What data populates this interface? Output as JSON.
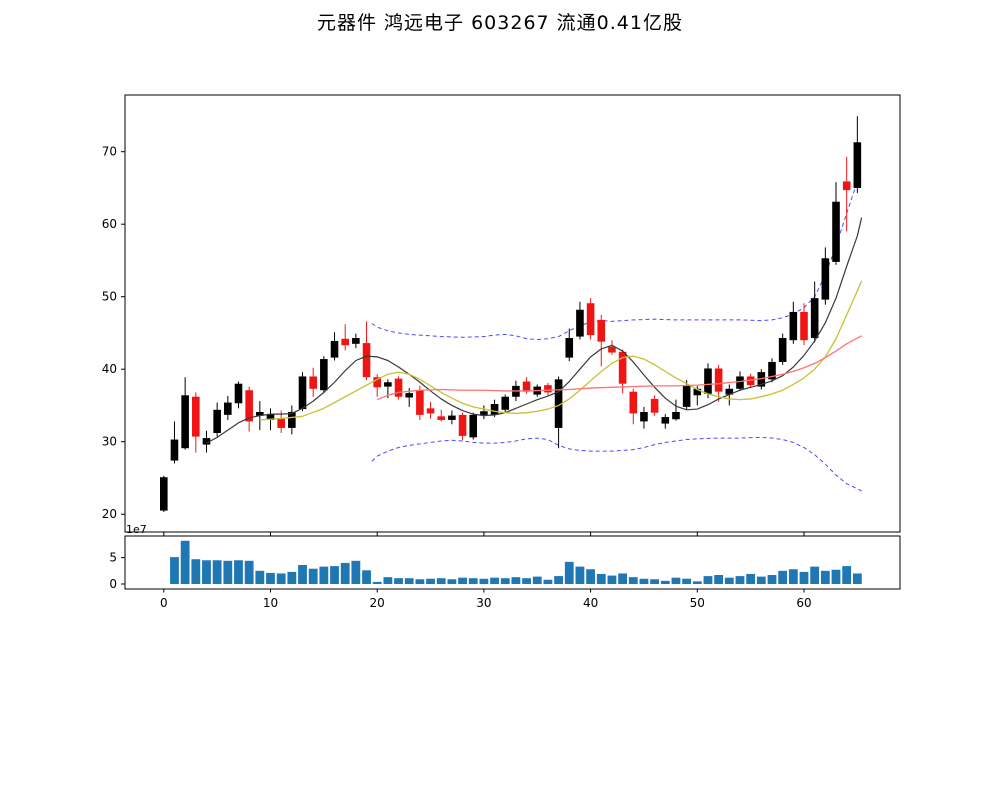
{
  "chart_data": {
    "type": "candlestick",
    "title": "元器件  鸿远电子  603267  流通0.41亿股",
    "panels": {
      "price": {
        "ylabel": "",
        "y_ticks": [
          20,
          30,
          40,
          50,
          60,
          70
        ],
        "ylim": [
          17.5,
          77.8
        ],
        "grid": false
      },
      "volume": {
        "scale_label": "1e7",
        "y_ticks": [
          0,
          5
        ],
        "ylim": [
          -0.9,
          9.1
        ],
        "bar_color": "#1f77b4"
      }
    },
    "x_axis": {
      "ticks": [
        0,
        10,
        20,
        30,
        40,
        50,
        60
      ],
      "xlim": [
        -3.6,
        69.0
      ]
    },
    "legend": null,
    "colors": {
      "up_candle": "#000000",
      "down_candle": "#f01515",
      "ma_fast": "#3a3a3a",
      "ma_mid": "#c9c035",
      "ma_slow": "#ff7373",
      "band": "#4a4aff",
      "volume_bar": "#1f77b4",
      "axis": "#000000"
    },
    "candles_ohlc": [
      [
        20.5,
        25.3,
        20.3,
        25.1
      ],
      [
        27.4,
        32.8,
        27.0,
        30.3
      ],
      [
        29.1,
        38.9,
        28.9,
        36.4
      ],
      [
        36.2,
        36.8,
        28.5,
        30.7
      ],
      [
        29.6,
        31.5,
        28.5,
        30.5
      ],
      [
        31.2,
        35.4,
        30.7,
        34.4
      ],
      [
        33.7,
        36.3,
        33.0,
        35.4
      ],
      [
        35.3,
        38.3,
        34.6,
        38.0
      ],
      [
        37.1,
        37.6,
        31.4,
        32.8
      ],
      [
        33.6,
        35.6,
        31.6,
        34.1
      ],
      [
        33.0,
        34.6,
        31.6,
        33.8
      ],
      [
        33.2,
        34.3,
        31.2,
        31.9
      ],
      [
        31.9,
        35.0,
        31.0,
        34.1
      ],
      [
        34.5,
        39.6,
        34.2,
        39.0
      ],
      [
        39.0,
        40.2,
        36.2,
        37.3
      ],
      [
        37.1,
        41.8,
        36.7,
        41.4
      ],
      [
        41.6,
        45.1,
        41.2,
        43.9
      ],
      [
        44.2,
        46.2,
        42.6,
        43.3
      ],
      [
        43.5,
        44.9,
        42.9,
        44.3
      ],
      [
        43.6,
        46.6,
        38.5,
        38.9
      ],
      [
        38.9,
        39.3,
        36.2,
        37.5
      ],
      [
        37.6,
        38.6,
        36.0,
        38.2
      ],
      [
        38.7,
        39.0,
        35.8,
        36.2
      ],
      [
        36.1,
        37.4,
        34.8,
        36.7
      ],
      [
        37.1,
        37.7,
        33.0,
        33.7
      ],
      [
        34.6,
        35.5,
        33.2,
        33.9
      ],
      [
        33.5,
        34.4,
        32.8,
        33.0
      ],
      [
        33.0,
        34.3,
        32.4,
        33.6
      ],
      [
        33.7,
        34.0,
        30.2,
        30.8
      ],
      [
        30.6,
        34.0,
        30.3,
        33.7
      ],
      [
        33.7,
        35.0,
        33.1,
        34.2
      ],
      [
        33.7,
        35.8,
        33.4,
        35.2
      ],
      [
        34.4,
        36.5,
        34.0,
        36.2
      ],
      [
        36.2,
        38.4,
        35.6,
        37.7
      ],
      [
        38.3,
        38.9,
        36.6,
        36.9
      ],
      [
        36.5,
        37.9,
        36.2,
        37.6
      ],
      [
        37.8,
        38.1,
        36.4,
        36.8
      ],
      [
        31.9,
        39.0,
        29.1,
        38.6
      ],
      [
        41.6,
        45.6,
        41.1,
        44.3
      ],
      [
        44.5,
        49.3,
        44.1,
        48.2
      ],
      [
        49.1,
        49.8,
        44.1,
        44.7
      ],
      [
        46.8,
        47.5,
        40.4,
        43.8
      ],
      [
        43.1,
        44.0,
        42.0,
        42.3
      ],
      [
        42.4,
        42.7,
        36.7,
        38.0
      ],
      [
        36.9,
        37.3,
        32.4,
        33.9
      ],
      [
        32.8,
        34.8,
        31.8,
        34.1
      ],
      [
        35.9,
        36.4,
        33.6,
        34.0
      ],
      [
        32.5,
        33.8,
        31.8,
        33.4
      ],
      [
        33.1,
        35.8,
        32.9,
        34.1
      ],
      [
        34.8,
        38.5,
        34.5,
        37.8
      ],
      [
        36.4,
        37.7,
        35.0,
        37.3
      ],
      [
        36.6,
        40.8,
        36.0,
        40.1
      ],
      [
        40.1,
        40.6,
        35.5,
        36.9
      ],
      [
        36.5,
        37.9,
        35.0,
        37.3
      ],
      [
        37.3,
        39.7,
        37.0,
        39.0
      ],
      [
        39.0,
        39.4,
        37.4,
        37.8
      ],
      [
        37.6,
        40.0,
        37.2,
        39.6
      ],
      [
        38.6,
        41.5,
        38.2,
        41.0
      ],
      [
        41.0,
        44.9,
        40.6,
        44.3
      ],
      [
        44.0,
        49.3,
        43.5,
        47.9
      ],
      [
        47.9,
        49.1,
        43.3,
        44.0
      ],
      [
        44.3,
        52.1,
        43.7,
        49.8
      ],
      [
        49.6,
        56.8,
        48.9,
        55.3
      ],
      [
        54.8,
        65.8,
        54.4,
        63.1
      ],
      [
        65.9,
        69.3,
        59.0,
        64.7
      ],
      [
        65.0,
        74.9,
        64.3,
        71.3
      ]
    ],
    "volumes_1e7": [
      0,
      5.1,
      8.2,
      4.7,
      4.5,
      4.5,
      4.4,
      4.5,
      4.4,
      2.5,
      2.1,
      2.0,
      2.3,
      3.6,
      2.9,
      3.3,
      3.4,
      4.0,
      4.4,
      2.6,
      0.4,
      1.3,
      1.1,
      1.1,
      0.9,
      1.0,
      1.1,
      0.9,
      1.2,
      1.1,
      1.0,
      1.2,
      1.1,
      1.3,
      1.1,
      1.4,
      0.8,
      1.5,
      4.2,
      3.3,
      2.8,
      1.9,
      1.6,
      2.0,
      1.3,
      1.0,
      0.9,
      0.6,
      1.2,
      1.0,
      0.5,
      1.5,
      1.7,
      1.2,
      1.5,
      1.9,
      1.4,
      1.7,
      2.5,
      2.8,
      2.3,
      3.3,
      2.5,
      2.7,
      3.4,
      2.0
    ],
    "overlays": {
      "ma_fast": [
        [
          4,
          29.8
        ],
        [
          5,
          30.6
        ],
        [
          6,
          31.6
        ],
        [
          7,
          32.6
        ],
        [
          8,
          33.3
        ],
        [
          9,
          33.6
        ],
        [
          10,
          33.8
        ],
        [
          11,
          33.8
        ],
        [
          12,
          33.9
        ],
        [
          13,
          34.6
        ],
        [
          14,
          35.6
        ],
        [
          15,
          36.8
        ],
        [
          16,
          38.2
        ],
        [
          17,
          39.8
        ],
        [
          18,
          41.2
        ],
        [
          19,
          41.8
        ],
        [
          20,
          41.7
        ],
        [
          21,
          41.2
        ],
        [
          22,
          40.3
        ],
        [
          23,
          39.3
        ],
        [
          24,
          38.2
        ],
        [
          25,
          37.0
        ],
        [
          26,
          35.9
        ],
        [
          27,
          35.0
        ],
        [
          28,
          34.3
        ],
        [
          29,
          33.8
        ],
        [
          30,
          33.6
        ],
        [
          31,
          33.7
        ],
        [
          32,
          34.0
        ],
        [
          33,
          34.6
        ],
        [
          34,
          35.2
        ],
        [
          35,
          35.8
        ],
        [
          36,
          36.3
        ],
        [
          37,
          36.9
        ],
        [
          38,
          38.3
        ],
        [
          39,
          40.0
        ],
        [
          40,
          41.7
        ],
        [
          41,
          42.8
        ],
        [
          42,
          43.3
        ],
        [
          43,
          42.5
        ],
        [
          44,
          41.0
        ],
        [
          45,
          39.2
        ],
        [
          46,
          37.5
        ],
        [
          47,
          36.0
        ],
        [
          48,
          34.9
        ],
        [
          49,
          34.4
        ],
        [
          50,
          34.5
        ],
        [
          51,
          35.1
        ],
        [
          52,
          35.9
        ],
        [
          53,
          36.5
        ],
        [
          54,
          37.1
        ],
        [
          55,
          37.5
        ],
        [
          56,
          37.9
        ],
        [
          57,
          38.4
        ],
        [
          58,
          39.1
        ],
        [
          59,
          40.3
        ],
        [
          60,
          41.9
        ],
        [
          61,
          43.9
        ],
        [
          62,
          46.4
        ],
        [
          63,
          49.8
        ],
        [
          64,
          54.2
        ],
        [
          65,
          58.4
        ],
        [
          65.4,
          60.9
        ]
      ],
      "ma_mid": [
        [
          9,
          33.0
        ],
        [
          11,
          33.2
        ],
        [
          13,
          33.5
        ],
        [
          15,
          34.6
        ],
        [
          17,
          36.2
        ],
        [
          19,
          37.8
        ],
        [
          20,
          38.6
        ],
        [
          21,
          39.3
        ],
        [
          22,
          39.6
        ],
        [
          23,
          39.3
        ],
        [
          24,
          38.6
        ],
        [
          25,
          37.7
        ],
        [
          26,
          36.8
        ],
        [
          27,
          36.0
        ],
        [
          28,
          35.3
        ],
        [
          29,
          34.8
        ],
        [
          30,
          34.5
        ],
        [
          31,
          34.2
        ],
        [
          32,
          34.0
        ],
        [
          33,
          33.9
        ],
        [
          34,
          34.0
        ],
        [
          35,
          34.2
        ],
        [
          36,
          34.5
        ],
        [
          37,
          35.0
        ],
        [
          38,
          35.9
        ],
        [
          39,
          37.1
        ],
        [
          40,
          38.4
        ],
        [
          41,
          39.7
        ],
        [
          42,
          40.8
        ],
        [
          43,
          41.6
        ],
        [
          44,
          41.8
        ],
        [
          45,
          41.4
        ],
        [
          46,
          40.6
        ],
        [
          47,
          39.7
        ],
        [
          48,
          38.8
        ],
        [
          49,
          38.0
        ],
        [
          50,
          37.2
        ],
        [
          51,
          36.6
        ],
        [
          52,
          36.2
        ],
        [
          53,
          35.9
        ],
        [
          54,
          35.8
        ],
        [
          55,
          35.9
        ],
        [
          56,
          36.2
        ],
        [
          57,
          36.6
        ],
        [
          58,
          37.1
        ],
        [
          59,
          37.9
        ],
        [
          60,
          38.8
        ],
        [
          61,
          40.0
        ],
        [
          62,
          41.7
        ],
        [
          63,
          44.2
        ],
        [
          64,
          47.5
        ],
        [
          65,
          50.8
        ],
        [
          65.4,
          52.2
        ]
      ],
      "ma_slow": [
        [
          20,
          35.8
        ],
        [
          21,
          36.4
        ],
        [
          22,
          36.8
        ],
        [
          24,
          37.1
        ],
        [
          26,
          37.2
        ],
        [
          28,
          37.1
        ],
        [
          30,
          37.1
        ],
        [
          32,
          37.0
        ],
        [
          34,
          37.0
        ],
        [
          36,
          37.1
        ],
        [
          38,
          37.2
        ],
        [
          40,
          37.4
        ],
        [
          42,
          37.5
        ],
        [
          44,
          37.6
        ],
        [
          46,
          37.7
        ],
        [
          48,
          37.7
        ],
        [
          50,
          37.8
        ],
        [
          52,
          38.0
        ],
        [
          54,
          38.3
        ],
        [
          56,
          38.7
        ],
        [
          57,
          39.0
        ],
        [
          58,
          39.3
        ],
        [
          59,
          39.7
        ],
        [
          60,
          40.2
        ],
        [
          61,
          40.8
        ],
        [
          62,
          41.6
        ],
        [
          63,
          42.5
        ],
        [
          64,
          43.5
        ],
        [
          65,
          44.3
        ],
        [
          65.4,
          44.6
        ]
      ],
      "band_upper": [
        [
          19.5,
          46.3
        ],
        [
          20,
          45.8
        ],
        [
          21,
          45.3
        ],
        [
          22,
          45.0
        ],
        [
          23,
          44.8
        ],
        [
          24,
          44.7
        ],
        [
          25,
          44.6
        ],
        [
          26,
          44.5
        ],
        [
          28,
          44.4
        ],
        [
          30,
          44.5
        ],
        [
          31,
          44.7
        ],
        [
          32,
          44.8
        ],
        [
          33,
          44.6
        ],
        [
          34,
          44.2
        ],
        [
          35,
          44.1
        ],
        [
          36,
          44.2
        ],
        [
          37,
          44.5
        ],
        [
          38,
          45.3
        ],
        [
          39,
          46.0
        ],
        [
          40,
          46.5
        ],
        [
          41,
          46.7
        ],
        [
          42,
          46.6
        ],
        [
          44,
          46.8
        ],
        [
          46,
          46.9
        ],
        [
          48,
          46.8
        ],
        [
          50,
          46.8
        ],
        [
          52,
          46.8
        ],
        [
          54,
          46.8
        ],
        [
          56,
          46.7
        ],
        [
          57,
          46.8
        ],
        [
          58,
          47.1
        ],
        [
          59,
          47.6
        ],
        [
          60,
          48.5
        ],
        [
          61,
          50.0
        ],
        [
          62,
          53.0
        ],
        [
          63,
          57.0
        ],
        [
          64,
          61.5
        ],
        [
          64.8,
          65.0
        ]
      ],
      "band_lower": [
        [
          19.5,
          27.3
        ],
        [
          20,
          28.0
        ],
        [
          21,
          28.7
        ],
        [
          22,
          29.2
        ],
        [
          23,
          29.5
        ],
        [
          24,
          29.7
        ],
        [
          25,
          29.9
        ],
        [
          26,
          30.1
        ],
        [
          27,
          30.2
        ],
        [
          28,
          30.1
        ],
        [
          29,
          29.9
        ],
        [
          30,
          29.8
        ],
        [
          31,
          29.8
        ],
        [
          32,
          29.9
        ],
        [
          33,
          30.1
        ],
        [
          34,
          30.4
        ],
        [
          35,
          30.5
        ],
        [
          36,
          30.3
        ],
        [
          37,
          29.5
        ],
        [
          38,
          29.0
        ],
        [
          39,
          28.8
        ],
        [
          40,
          28.7
        ],
        [
          42,
          28.7
        ],
        [
          43,
          28.8
        ],
        [
          44,
          28.9
        ],
        [
          45,
          29.2
        ],
        [
          46,
          29.6
        ],
        [
          47,
          29.9
        ],
        [
          48,
          30.1
        ],
        [
          49,
          30.3
        ],
        [
          50,
          30.4
        ],
        [
          52,
          30.5
        ],
        [
          54,
          30.5
        ],
        [
          56,
          30.6
        ],
        [
          57,
          30.5
        ],
        [
          58,
          30.3
        ],
        [
          59,
          29.9
        ],
        [
          60,
          29.2
        ],
        [
          61,
          28.2
        ],
        [
          62,
          26.9
        ],
        [
          63,
          25.4
        ],
        [
          64,
          24.2
        ],
        [
          65,
          23.5
        ],
        [
          65.4,
          23.2
        ]
      ]
    }
  }
}
